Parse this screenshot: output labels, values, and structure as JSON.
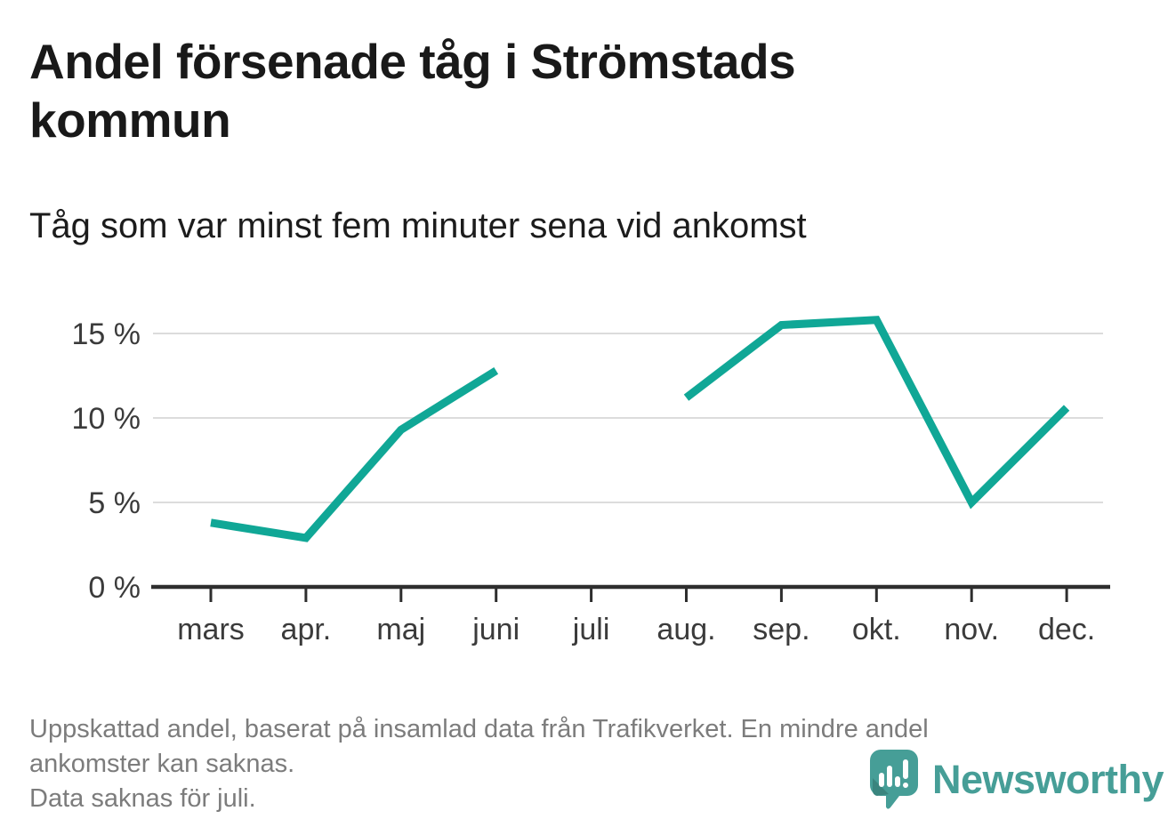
{
  "header": {
    "title": "Andel försenade tåg i Strömstads kommun",
    "subtitle": "Tåg som var minst fem minuter sena vid ankomst"
  },
  "chart_data": {
    "type": "line",
    "title": "Andel försenade tåg i Strömstads kommun",
    "subtitle": "Tåg som var minst fem minuter sena vid ankomst",
    "categories": [
      "mars",
      "apr.",
      "maj",
      "juni",
      "juli",
      "aug.",
      "sep.",
      "okt.",
      "nov.",
      "dec."
    ],
    "series": [
      {
        "name": "Andel försenade tåg",
        "values": [
          3.8,
          2.9,
          9.3,
          12.8,
          null,
          11.2,
          15.5,
          15.8,
          5.0,
          10.6
        ]
      }
    ],
    "unit": "%",
    "ylim": [
      0,
      17
    ],
    "yticks": [
      {
        "value": 0,
        "label": "0 %"
      },
      {
        "value": 5,
        "label": "5 %"
      },
      {
        "value": 10,
        "label": "10 %"
      },
      {
        "value": 15,
        "label": "15 %"
      }
    ],
    "grid": "horizontal",
    "legend": "none",
    "missing_data_months": [
      "juli"
    ],
    "colors": {
      "line": "#10a796",
      "gridline": "#dcdcdc",
      "axis": "#2e2e2e",
      "tick_label": "#3b3b3b"
    }
  },
  "footer": {
    "lines": [
      "Uppskattad andel, baserat på insamlad data från Trafikverket. En mindre andel",
      "ankomster kan saknas.",
      "Data saknas för juli."
    ]
  },
  "branding": {
    "logo_text": "Newsworthy",
    "logo_color": "#469e97",
    "logo_shade": "#3a857e"
  }
}
